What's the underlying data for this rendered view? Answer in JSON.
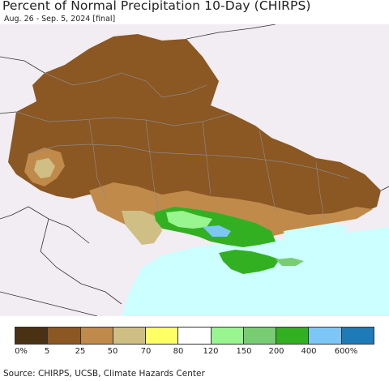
{
  "title": "Percent of Normal Precipitation 10-Day (CHIRPS)",
  "subtitle": "Aug. 26 - Sep. 5, 2024 [final]",
  "legend": {
    "colors": [
      "#4a3113",
      "#8b5722",
      "#c08a4b",
      "#d0bf85",
      "#ffff66",
      "#ffffff",
      "#98f58f",
      "#78cc72",
      "#33b022",
      "#7cc7f8",
      "#1f7ab8"
    ],
    "labels": [
      "0%",
      "5",
      "25",
      "50",
      "70",
      "80",
      "120",
      "150",
      "200",
      "400",
      "600%"
    ]
  },
  "source": "Source: CHIRPS, UCSB, Climate Hazards Center",
  "map": {
    "background_color": "#f1edf2",
    "sea_color": "#ccffff",
    "dominant_color": "#8b5722"
  }
}
